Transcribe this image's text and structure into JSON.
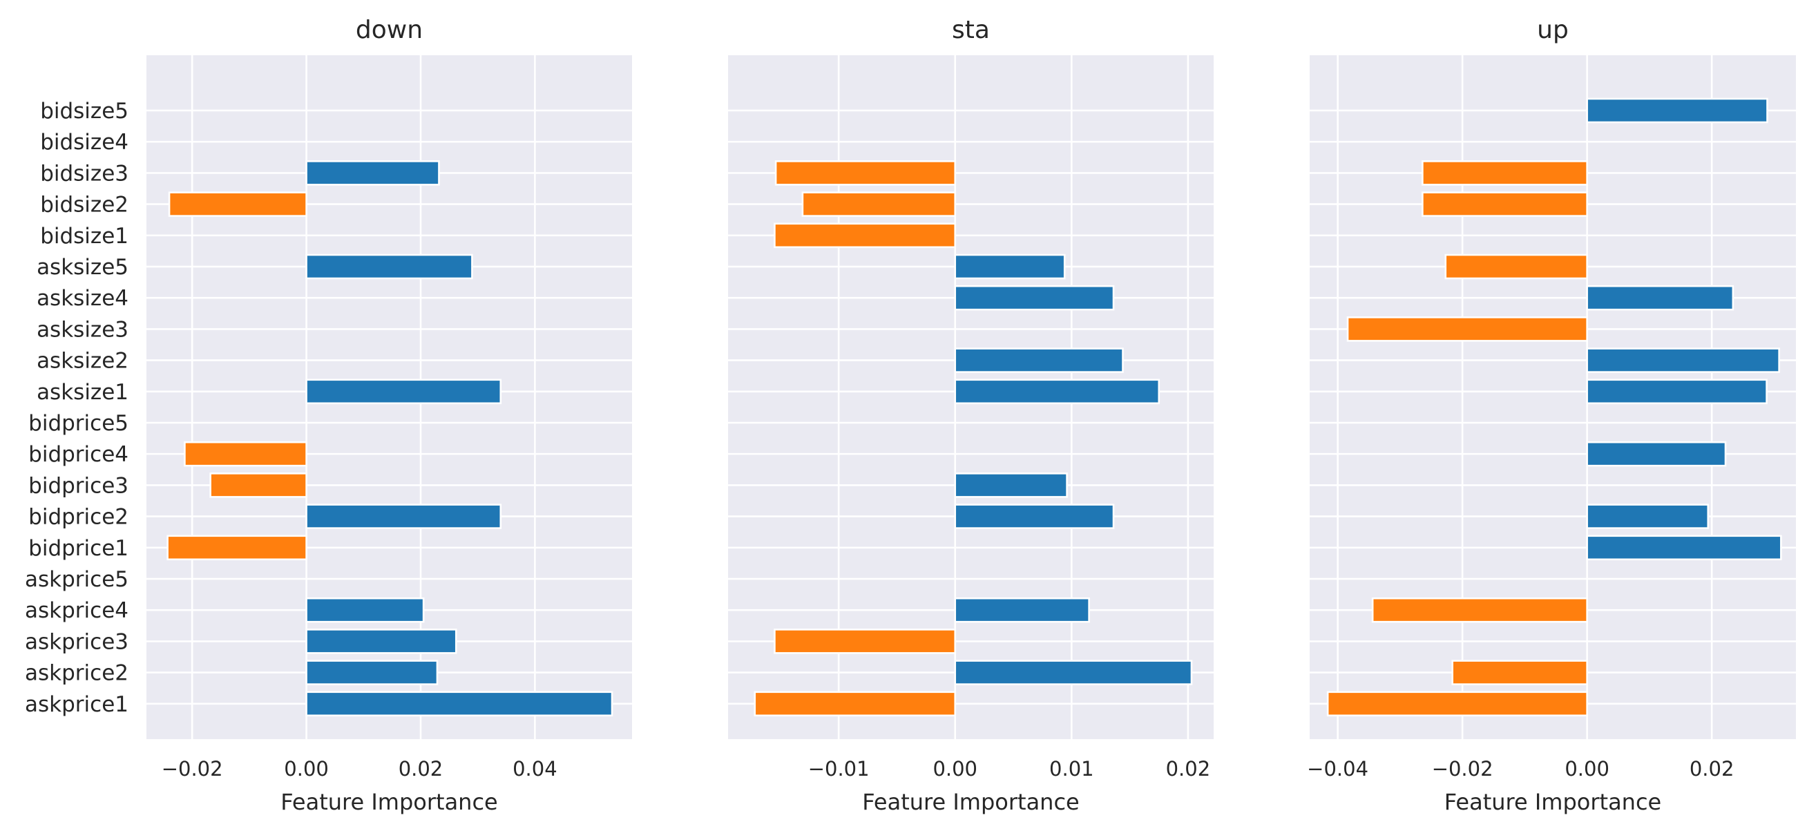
{
  "chart_data": [
    {
      "type": "bar",
      "orientation": "horizontal",
      "title": "down",
      "xlabel": "Feature Importance",
      "ylabel": "",
      "xlim": [
        -0.028,
        0.057
      ],
      "xticks": [
        -0.02,
        0.0,
        0.02,
        0.04
      ],
      "xtick_labels": [
        "−0.02",
        "0.00",
        "0.02",
        "0.04"
      ],
      "grid": true,
      "categories": [
        "askprice1",
        "askprice2",
        "askprice3",
        "askprice4",
        "askprice5",
        "bidprice1",
        "bidprice2",
        "bidprice3",
        "bidprice4",
        "bidprice5",
        "asksize1",
        "asksize2",
        "asksize3",
        "asksize4",
        "asksize5",
        "bidsize1",
        "bidsize2",
        "bidsize3",
        "bidsize4",
        "bidsize5"
      ],
      "values": [
        0.0535,
        0.0229,
        0.0262,
        0.0205,
        0,
        -0.0243,
        0.034,
        -0.0168,
        -0.0213,
        0,
        0.034,
        0,
        0,
        0,
        0.029,
        0,
        -0.024,
        0.0232,
        0,
        0
      ]
    },
    {
      "type": "bar",
      "orientation": "horizontal",
      "title": "sta",
      "xlabel": "Feature Importance",
      "ylabel": "",
      "xlim": [
        -0.0195,
        0.0222
      ],
      "xticks": [
        -0.01,
        0.0,
        0.01,
        0.02
      ],
      "xtick_labels": [
        "−0.01",
        "0.00",
        "0.01",
        "0.02"
      ],
      "grid": true,
      "categories": [
        "askprice1",
        "askprice2",
        "askprice3",
        "askprice4",
        "askprice5",
        "bidprice1",
        "bidprice2",
        "bidprice3",
        "bidprice4",
        "bidprice5",
        "asksize1",
        "asksize2",
        "asksize3",
        "asksize4",
        "asksize5",
        "bidsize1",
        "bidsize2",
        "bidsize3",
        "bidsize4",
        "bidsize5"
      ],
      "values": [
        -0.0172,
        0.0203,
        -0.0155,
        0.0115,
        0,
        0,
        0.0136,
        0.0096,
        0,
        0,
        0.0175,
        0.0144,
        0,
        0.0136,
        0.0094,
        -0.0155,
        -0.0131,
        -0.0154,
        0,
        0
      ]
    },
    {
      "type": "bar",
      "orientation": "horizontal",
      "title": "up",
      "xlabel": "Feature Importance",
      "ylabel": "",
      "xlim": [
        -0.0445,
        0.0335
      ],
      "xticks": [
        -0.04,
        -0.02,
        0.0,
        0.02
      ],
      "xtick_labels": [
        "−0.04",
        "−0.02",
        "0.00",
        "0.02"
      ],
      "grid": true,
      "categories": [
        "askprice1",
        "askprice2",
        "askprice3",
        "askprice4",
        "askprice5",
        "bidprice1",
        "bidprice2",
        "bidprice3",
        "bidprice4",
        "bidprice5",
        "asksize1",
        "asksize2",
        "asksize3",
        "asksize4",
        "asksize5",
        "bidsize1",
        "bidsize2",
        "bidsize3",
        "bidsize4",
        "bidsize5"
      ],
      "values": [
        -0.0416,
        -0.0216,
        0,
        -0.0344,
        0,
        0.0311,
        0.0194,
        0,
        0.0222,
        0,
        0.0288,
        0.0308,
        -0.0384,
        0.0234,
        -0.0227,
        0,
        -0.0264,
        -0.0264,
        0,
        0.0289
      ]
    }
  ],
  "colors": {
    "positive": "#1f77b4",
    "negative": "#ff7f0e",
    "panel_bg": "#eaeaf2",
    "grid": "#ffffff",
    "text": "#262626"
  }
}
